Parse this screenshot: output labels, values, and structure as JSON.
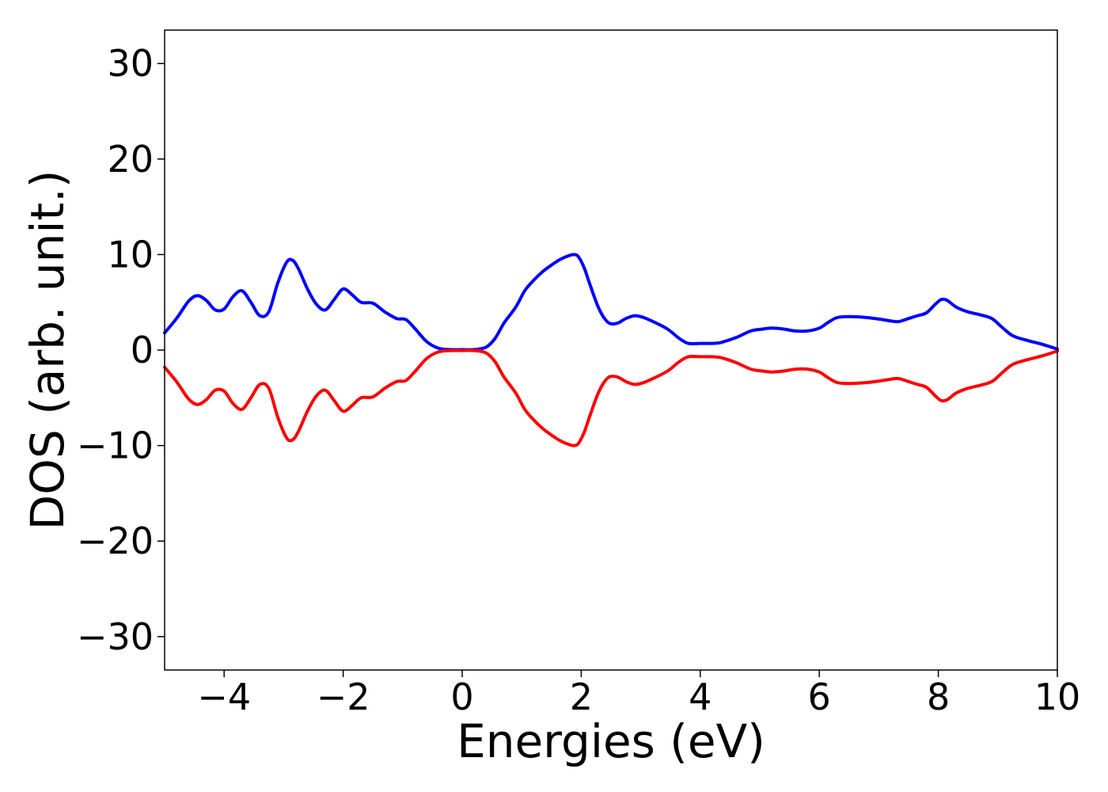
{
  "chart_data": {
    "type": "line",
    "title": "",
    "xlabel": "Energies (eV)",
    "ylabel": "DOS (arb. unit.)",
    "xlim": [
      -5,
      10
    ],
    "ylim": [
      -33.5,
      33.5
    ],
    "xticks": [
      -4,
      -2,
      0,
      2,
      4,
      6,
      8,
      10
    ],
    "xtick_labels": [
      "−4",
      "−2",
      "0",
      "2",
      "4",
      "6",
      "8",
      "10"
    ],
    "yticks": [
      30,
      20,
      10,
      0,
      -10,
      -20,
      -30
    ],
    "ytick_labels": [
      "30",
      "20",
      "10",
      "0",
      "−10",
      "−20",
      "−30"
    ],
    "grid": false,
    "legend": false,
    "series": [
      {
        "color": "#0000ff",
        "x": [
          -5.0,
          -4.8,
          -4.6,
          -4.45,
          -4.3,
          -4.15,
          -4.0,
          -3.85,
          -3.7,
          -3.55,
          -3.4,
          -3.25,
          -3.1,
          -2.95,
          -2.85,
          -2.75,
          -2.6,
          -2.45,
          -2.3,
          -2.15,
          -2.0,
          -1.85,
          -1.7,
          -1.5,
          -1.3,
          -1.1,
          -0.95,
          -0.8,
          -0.6,
          -0.4,
          -0.2,
          0.0,
          0.2,
          0.4,
          0.55,
          0.7,
          0.9,
          1.05,
          1.2,
          1.35,
          1.5,
          1.65,
          1.8,
          1.88,
          1.95,
          2.05,
          2.15,
          2.3,
          2.45,
          2.6,
          2.75,
          2.9,
          3.05,
          3.2,
          3.45,
          3.65,
          3.8,
          4.0,
          4.2,
          4.35,
          4.6,
          4.85,
          5.05,
          5.2,
          5.4,
          5.6,
          5.8,
          6.0,
          6.15,
          6.3,
          6.5,
          6.8,
          7.05,
          7.25,
          7.35,
          7.5,
          7.65,
          7.8,
          7.95,
          8.05,
          8.15,
          8.3,
          8.5,
          8.7,
          8.9,
          9.05,
          9.25,
          9.5,
          9.75,
          10.0
        ],
        "y": [
          1.8,
          3.3,
          5.1,
          5.7,
          5.2,
          4.2,
          4.3,
          5.6,
          6.2,
          5.0,
          3.6,
          4.0,
          7.0,
          9.2,
          9.4,
          8.5,
          6.4,
          4.8,
          4.2,
          5.3,
          6.4,
          5.8,
          5.0,
          4.9,
          4.0,
          3.3,
          3.2,
          2.3,
          0.9,
          0.2,
          0.05,
          0.05,
          0.05,
          0.3,
          1.2,
          2.8,
          4.5,
          6.2,
          7.3,
          8.2,
          8.9,
          9.5,
          9.9,
          10.0,
          9.8,
          8.6,
          6.8,
          4.3,
          2.9,
          2.8,
          3.3,
          3.6,
          3.4,
          3.0,
          2.2,
          1.2,
          0.7,
          0.7,
          0.7,
          0.8,
          1.3,
          2.0,
          2.2,
          2.3,
          2.2,
          2.0,
          2.0,
          2.3,
          2.9,
          3.4,
          3.5,
          3.4,
          3.2,
          3.0,
          3.0,
          3.3,
          3.6,
          3.9,
          4.8,
          5.3,
          5.2,
          4.5,
          4.0,
          3.7,
          3.3,
          2.5,
          1.5,
          1.0,
          0.6,
          0.1
        ]
      },
      {
        "color": "#ff0000",
        "x": [
          -5.0,
          -4.8,
          -4.6,
          -4.45,
          -4.3,
          -4.15,
          -4.0,
          -3.85,
          -3.7,
          -3.55,
          -3.4,
          -3.25,
          -3.1,
          -2.95,
          -2.85,
          -2.75,
          -2.6,
          -2.45,
          -2.3,
          -2.15,
          -2.0,
          -1.85,
          -1.7,
          -1.5,
          -1.3,
          -1.1,
          -0.95,
          -0.8,
          -0.6,
          -0.4,
          -0.2,
          0.0,
          0.2,
          0.4,
          0.55,
          0.7,
          0.9,
          1.05,
          1.2,
          1.35,
          1.5,
          1.65,
          1.8,
          1.88,
          1.95,
          2.05,
          2.15,
          2.3,
          2.45,
          2.6,
          2.75,
          2.9,
          3.05,
          3.2,
          3.45,
          3.65,
          3.8,
          4.0,
          4.2,
          4.35,
          4.6,
          4.85,
          5.05,
          5.2,
          5.4,
          5.6,
          5.8,
          6.0,
          6.15,
          6.3,
          6.5,
          6.8,
          7.05,
          7.25,
          7.35,
          7.5,
          7.65,
          7.8,
          7.95,
          8.05,
          8.15,
          8.3,
          8.5,
          8.7,
          8.9,
          9.05,
          9.25,
          9.5,
          9.75,
          10.0
        ],
        "y": [
          -1.8,
          -3.3,
          -5.1,
          -5.7,
          -5.2,
          -4.2,
          -4.3,
          -5.6,
          -6.2,
          -5.0,
          -3.6,
          -4.0,
          -7.0,
          -9.2,
          -9.4,
          -8.5,
          -6.4,
          -4.8,
          -4.2,
          -5.3,
          -6.4,
          -5.8,
          -5.0,
          -4.9,
          -4.0,
          -3.3,
          -3.2,
          -2.3,
          -0.9,
          -0.2,
          -0.05,
          -0.05,
          -0.05,
          -0.3,
          -1.2,
          -2.8,
          -4.5,
          -6.2,
          -7.3,
          -8.2,
          -8.9,
          -9.5,
          -9.9,
          -10.0,
          -9.8,
          -8.6,
          -6.8,
          -4.3,
          -2.9,
          -2.8,
          -3.3,
          -3.6,
          -3.4,
          -3.0,
          -2.2,
          -1.2,
          -0.7,
          -0.7,
          -0.7,
          -0.8,
          -1.3,
          -2.0,
          -2.2,
          -2.3,
          -2.2,
          -2.0,
          -2.0,
          -2.3,
          -2.9,
          -3.4,
          -3.5,
          -3.4,
          -3.2,
          -3.0,
          -3.0,
          -3.3,
          -3.6,
          -3.9,
          -4.8,
          -5.3,
          -5.2,
          -4.5,
          -4.0,
          -3.7,
          -3.3,
          -2.5,
          -1.5,
          -1.0,
          -0.6,
          -0.1
        ]
      }
    ]
  }
}
